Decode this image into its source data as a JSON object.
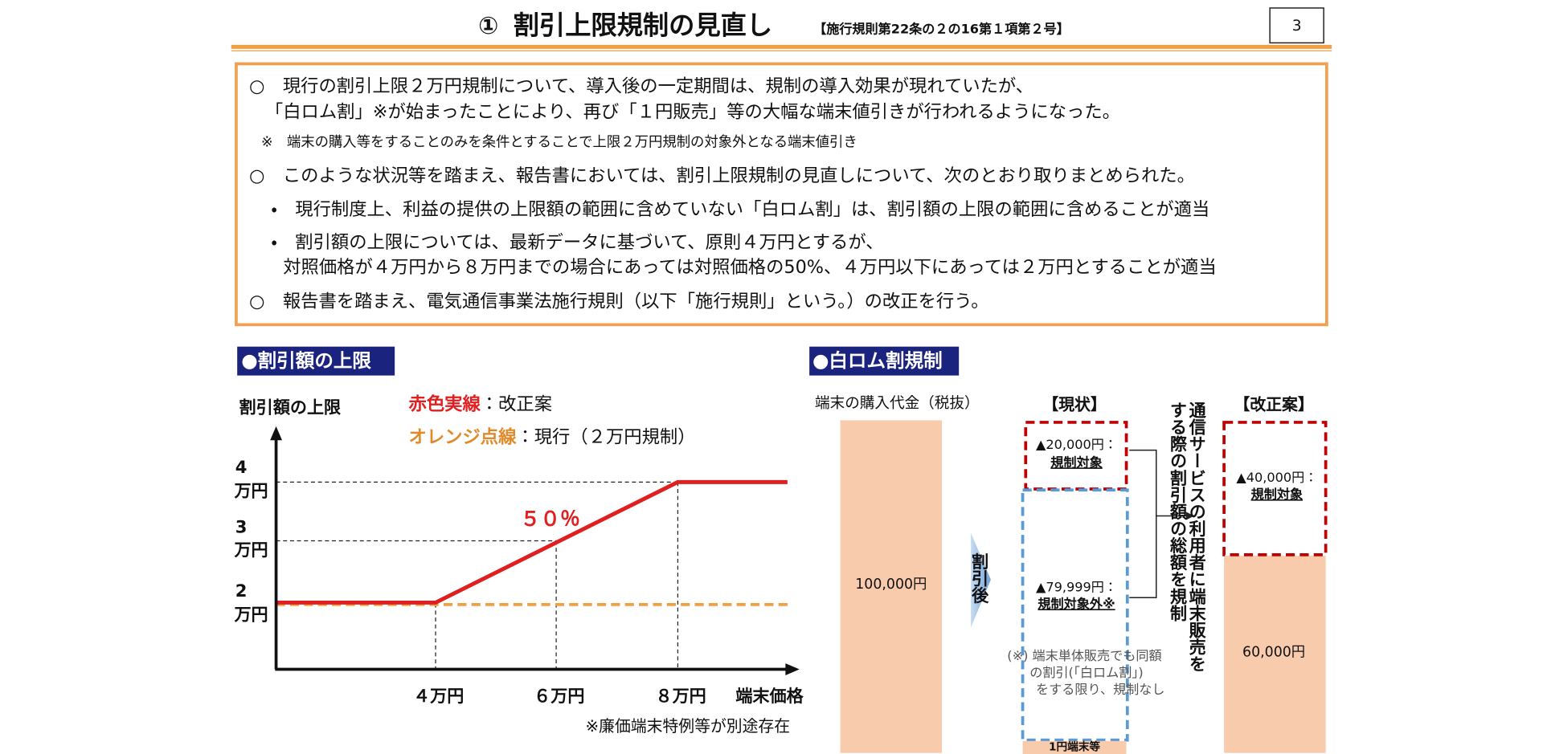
{
  "header": {
    "number": "①",
    "title": "割引上限規制の見直し",
    "reference": "【施行規則第22条の２の16第１項第２号】",
    "page": "3"
  },
  "summary": {
    "lines": [
      "○　現行の割引上限２万円規制について、導入後の一定期間は、規制の導入効果が現れていたが、",
      "「白ロム割」※が始まったことにより、再び「１円販売」等の大幅な端末値引きが行われるようになった。",
      "※　端末の購入等をすることのみを条件とすることで上限２万円規制の対象外となる端末値引き",
      "○　このような状況等を踏まえ、報告書においては、割引上限規制の見直しについて、次のとおり取りまとめられた。",
      "・　現行制度上、利益の提供の上限額の範囲に含めていない「白ロム割」は、割引額の上限の範囲に含めることが適当",
      "・　割引額の上限については、最新データに基づいて、原則４万円とするが、",
      "対照価格が４万円から８万円までの場合にあっては対照価格の50%、４万円以下にあっては２万円とすることが適当",
      "○　報告書を踏まえ、電気通信事業法施行規則（以下「施行規則」という。）の改正を行う。"
    ]
  },
  "left_panel": {
    "title": "●割引額の上限",
    "y_axis_label": "割引額の上限",
    "legend": [
      {
        "key": "赤色実線",
        "text": "：改正案"
      },
      {
        "key": "オレンジ点線",
        "text": "：現行（２万円規制）"
      }
    ],
    "y_labels": [
      {
        "num": "4",
        "unit": "万円"
      },
      {
        "num": "3",
        "unit": "万円"
      },
      {
        "num": "2",
        "unit": "万円"
      }
    ],
    "x_labels": [
      "４万円",
      "６万円",
      "８万円"
    ],
    "x_axis_label": "端末価格",
    "slope_label": "５０％",
    "note": "※廉価端末特例等が別途存在"
  },
  "right_panel": {
    "title": "●白ロム割規制",
    "price_label": "端末の購入代金（税抜）",
    "base_price": "100,000円",
    "arrow_label": "割引後",
    "current": {
      "heading": "【現状】",
      "regulated_amount": "▲20,000円：",
      "regulated": "規制対象",
      "unregulated_amount": "▲79,999円：",
      "unregulated": "規制対象外※",
      "note": [
        "(※) 端末単体販売でも同額",
        "の割引(「白ロム割」)",
        "をする限り、規制なし"
      ],
      "bottom": "1円端末等"
    },
    "bracket_text": [
      "通信サービスの利用者に端末販売を",
      "する際の割引額の総額を規制"
    ],
    "proposed": {
      "heading": "【改正案】",
      "regulated_amount": "▲40,000円：",
      "regulated": "規制対象",
      "remainder": "60,000円"
    }
  }
}
